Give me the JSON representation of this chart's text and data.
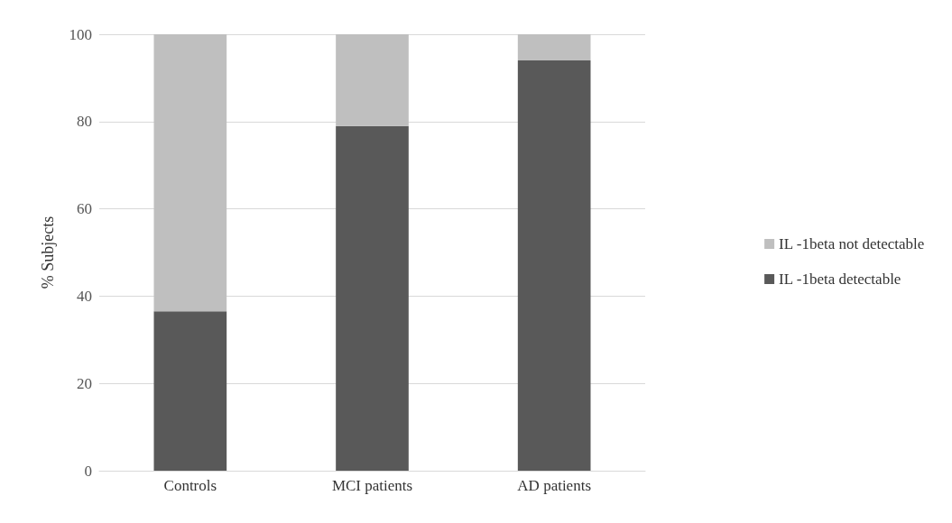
{
  "chart_data": {
    "type": "bar",
    "ylabel": "% Subjects",
    "categories": [
      "Controls",
      "MCI patients",
      "AD patients"
    ],
    "stacked": true,
    "series": [
      {
        "name": "IL -1beta detectable",
        "color": "#595959",
        "values": [
          36.5,
          79,
          94
        ]
      },
      {
        "name": "IL -1beta not detectable",
        "color": "#bfbfbf",
        "values": [
          63.5,
          21,
          6
        ]
      }
    ],
    "ylim": [
      0,
      100
    ],
    "yticks": [
      0,
      20,
      40,
      60,
      80,
      100
    ],
    "grid": "y",
    "legend": "right"
  }
}
